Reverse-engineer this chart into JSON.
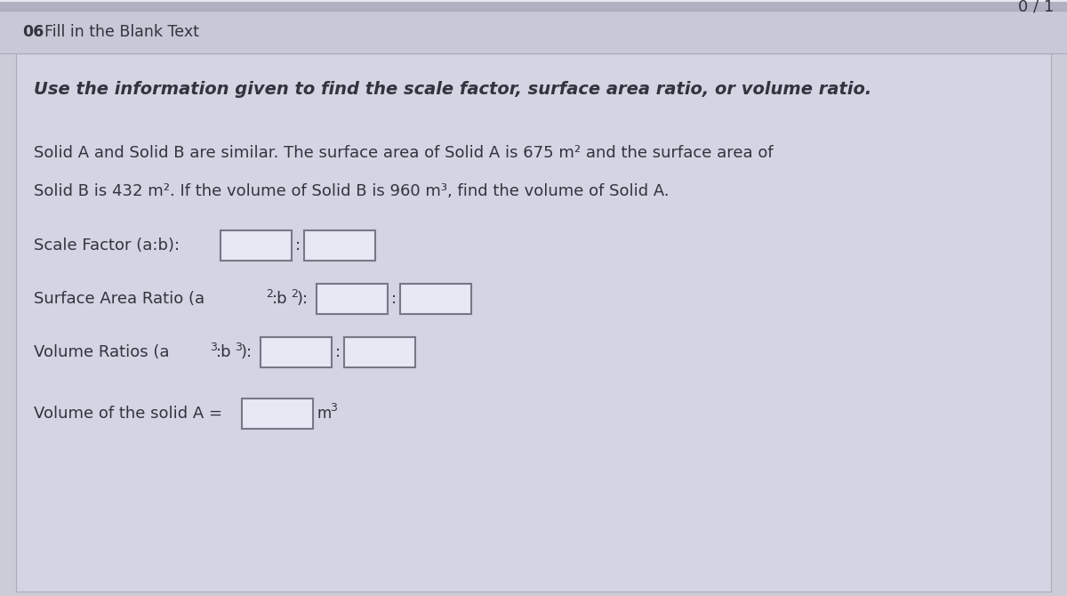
{
  "background_color": "#ccccd8",
  "content_bg": "#d4d4e2",
  "header_bg": "#c8c8d6",
  "score_text": "0 / 1",
  "header_label_bold": "06",
  "header_label_normal": "  Fill in the Blank Text",
  "instruction_bold": "Use the information given to find the scale factor, surface area ratio, or volume ratio.",
  "problem_line1": "Solid A and Solid B are similar. The surface area of Solid A is 675 m² and the surface area of",
  "problem_line2": "Solid B is 432 m². If the volume of Solid B is 960 m³, find the volume of Solid A.",
  "label_scale": "Scale Factor (a:b):",
  "label_surface_pre": "Surface Area Ratio (a",
  "label_surface_sup1": "2",
  "label_surface_mid": ":b",
  "label_surface_sup2": "2",
  "label_surface_post": "):",
  "label_volume_ratio_pre": "Volume Ratios (a",
  "label_volume_ratio_sup1": "3",
  "label_volume_ratio_mid": ":b",
  "label_volume_ratio_sup2": "3",
  "label_volume_ratio_post": "):",
  "label_volume_solid": "Volume of the solid A =",
  "unit_m3": "m³",
  "box_fill": "#e8e8f4",
  "box_edge": "#777788",
  "text_color": "#333340",
  "score_color": "#333340",
  "separator_color": "#aaaabc",
  "top_line_color": "#b0b0c0"
}
